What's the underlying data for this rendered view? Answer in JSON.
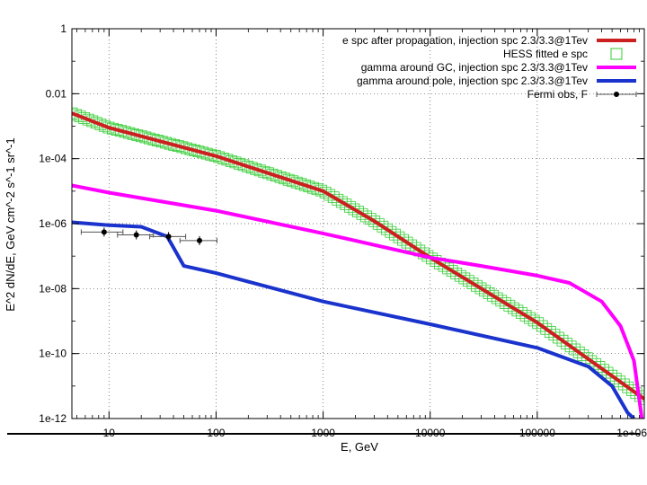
{
  "chart_data": {
    "type": "line",
    "xlabel": "E, GeV",
    "ylabel": "E^2 dN/dE, GeV cm^-2 s^-1 sr^-1",
    "x_scale": "log",
    "y_scale": "log",
    "xlim": [
      4.5,
      1000000
    ],
    "ylim": [
      1e-12,
      1
    ],
    "grid": true,
    "legend_position": "top-right",
    "x_ticks": [
      {
        "value": 10,
        "label": "10"
      },
      {
        "value": 100,
        "label": "100"
      },
      {
        "value": 1000,
        "label": "1000"
      },
      {
        "value": 10000,
        "label": "10000"
      },
      {
        "value": 100000,
        "label": "100000"
      },
      {
        "value": 1000000,
        "label": "1e+06"
      }
    ],
    "y_ticks": [
      {
        "value": 1,
        "label": "1"
      },
      {
        "value": 0.01,
        "label": "0.01"
      },
      {
        "value": 0.0001,
        "label": "1e-04"
      },
      {
        "value": 1e-06,
        "label": "1e-06"
      },
      {
        "value": 1e-08,
        "label": "1e-08"
      },
      {
        "value": 1e-10,
        "label": "1e-10"
      },
      {
        "value": 1e-12,
        "label": "1e-12"
      }
    ],
    "series": [
      {
        "name": "e spc after propagation, injection spc 2.3/3.3@1Tev",
        "style": "line",
        "color": "#cc2020",
        "points": [
          [
            4.5,
            0.0025
          ],
          [
            10,
            0.0009
          ],
          [
            100,
            0.00012
          ],
          [
            1000,
            1e-05
          ],
          [
            3000,
            1.2e-06
          ],
          [
            10000,
            9e-08
          ],
          [
            100000,
            9e-10
          ],
          [
            1000000,
            4e-12
          ]
        ]
      },
      {
        "name": "HESS fitted e spc",
        "style": "markers",
        "color": "#33cc33",
        "points": [
          [
            4.5,
            0.0025
          ],
          [
            10,
            0.0009
          ],
          [
            100,
            0.00012
          ],
          [
            1000,
            1e-05
          ],
          [
            3000,
            1.2e-06
          ],
          [
            10000,
            9e-08
          ],
          [
            100000,
            9e-10
          ],
          [
            1000000,
            4e-12
          ]
        ]
      },
      {
        "name": "gamma around GC, injection spc 2.3/3.3@1Tev",
        "style": "line",
        "color": "#ff00ff",
        "points": [
          [
            4.5,
            1.5e-05
          ],
          [
            10,
            9e-06
          ],
          [
            100,
            2.5e-06
          ],
          [
            1000,
            5e-07
          ],
          [
            10000,
            9e-08
          ],
          [
            30000,
            5e-08
          ],
          [
            100000,
            2.5e-08
          ],
          [
            200000,
            1.5e-08
          ],
          [
            400000,
            4e-09
          ],
          [
            600000,
            7e-10
          ],
          [
            800000,
            6e-11
          ],
          [
            950000,
            1e-12
          ]
        ]
      },
      {
        "name": "gamma around pole, injection spc 2.3/3.3@1Tev",
        "style": "line",
        "color": "#1a33cc",
        "points": [
          [
            4.5,
            1.1e-06
          ],
          [
            10,
            9e-07
          ],
          [
            20,
            8e-07
          ],
          [
            35,
            4e-07
          ],
          [
            50,
            5e-08
          ],
          [
            100,
            3e-08
          ],
          [
            1000,
            4e-09
          ],
          [
            10000,
            8e-10
          ],
          [
            100000,
            1.5e-10
          ],
          [
            300000,
            4e-11
          ],
          [
            500000,
            1e-11
          ],
          [
            700000,
            1.5e-12
          ],
          [
            800000,
            1e-12
          ]
        ]
      },
      {
        "name": "Fermi obs, F",
        "style": "errorbars",
        "color": "#000000",
        "points": [
          {
            "x": 9,
            "y": 5.5e-07,
            "xlo": 5.5,
            "xhi": 13.5
          },
          {
            "x": 18,
            "y": 4.5e-07,
            "xlo": 12,
            "xhi": 26
          },
          {
            "x": 36,
            "y": 4e-07,
            "xlo": 24,
            "xhi": 52
          },
          {
            "x": 70,
            "y": 3e-07,
            "xlo": 46,
            "xhi": 102
          }
        ]
      }
    ]
  }
}
